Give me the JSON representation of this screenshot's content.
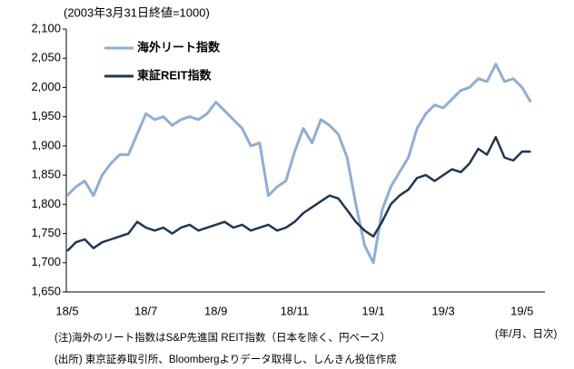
{
  "chart_data": {
    "type": "line",
    "ylabel": "(2003年3月31日終値=1000)",
    "xlabel": "(年/月、日次)",
    "notes": [
      "(注)海外のリート指数はS&P先進国 REIT指数（日本を除く、円ベース）",
      "(出所) 東京証券取引所、Bloombergよりデータ取得し、しんきん投信作成"
    ],
    "categories": [
      "18/5",
      null,
      null,
      null,
      null,
      null,
      null,
      null,
      null,
      "18/7",
      null,
      null,
      null,
      null,
      null,
      null,
      null,
      "18/9",
      null,
      null,
      null,
      null,
      null,
      null,
      null,
      null,
      "18/11",
      null,
      null,
      null,
      null,
      null,
      null,
      null,
      null,
      "19/1",
      null,
      null,
      null,
      null,
      null,
      null,
      null,
      "19/3",
      null,
      null,
      null,
      null,
      null,
      null,
      null,
      null,
      "19/5",
      null
    ],
    "series": [
      {
        "name": "海外リート指数",
        "color": "#8eaed6",
        "values": [
          1815,
          1830,
          1840,
          1815,
          1850,
          1870,
          1885,
          1885,
          1920,
          1955,
          1945,
          1950,
          1935,
          1945,
          1950,
          1945,
          1955,
          1975,
          1960,
          1945,
          1930,
          1900,
          1905,
          1815,
          1830,
          1840,
          1890,
          1930,
          1905,
          1945,
          1935,
          1920,
          1880,
          1800,
          1730,
          1700,
          1790,
          1830,
          1855,
          1880,
          1930,
          1955,
          1970,
          1965,
          1980,
          1995,
          2000,
          2015,
          2010,
          2040,
          2010,
          2015,
          2000,
          1975
        ]
      },
      {
        "name": "東証REIT指数",
        "color": "#1f3654",
        "values": [
          1720,
          1735,
          1740,
          1725,
          1735,
          1740,
          1745,
          1750,
          1770,
          1760,
          1755,
          1760,
          1750,
          1760,
          1765,
          1755,
          1760,
          1765,
          1770,
          1760,
          1765,
          1755,
          1760,
          1765,
          1755,
          1760,
          1770,
          1785,
          1795,
          1805,
          1815,
          1810,
          1790,
          1770,
          1755,
          1745,
          1770,
          1800,
          1815,
          1825,
          1845,
          1850,
          1840,
          1850,
          1860,
          1855,
          1870,
          1895,
          1885,
          1915,
          1880,
          1875,
          1890,
          1890
        ]
      }
    ],
    "ylim": [
      1650,
      2100
    ],
    "yticks": [
      {
        "value": 1650,
        "label": "1,650"
      },
      {
        "value": 1700,
        "label": "1,700"
      },
      {
        "value": 1750,
        "label": "1,750"
      },
      {
        "value": 1800,
        "label": "1,800"
      },
      {
        "value": 1850,
        "label": "1,850"
      },
      {
        "value": 1900,
        "label": "1,900"
      },
      {
        "value": 1950,
        "label": "1,950"
      },
      {
        "value": 2000,
        "label": "2,000"
      },
      {
        "value": 2050,
        "label": "2,050"
      },
      {
        "value": 2100,
        "label": "2,100"
      }
    ],
    "legend": "upper left"
  }
}
